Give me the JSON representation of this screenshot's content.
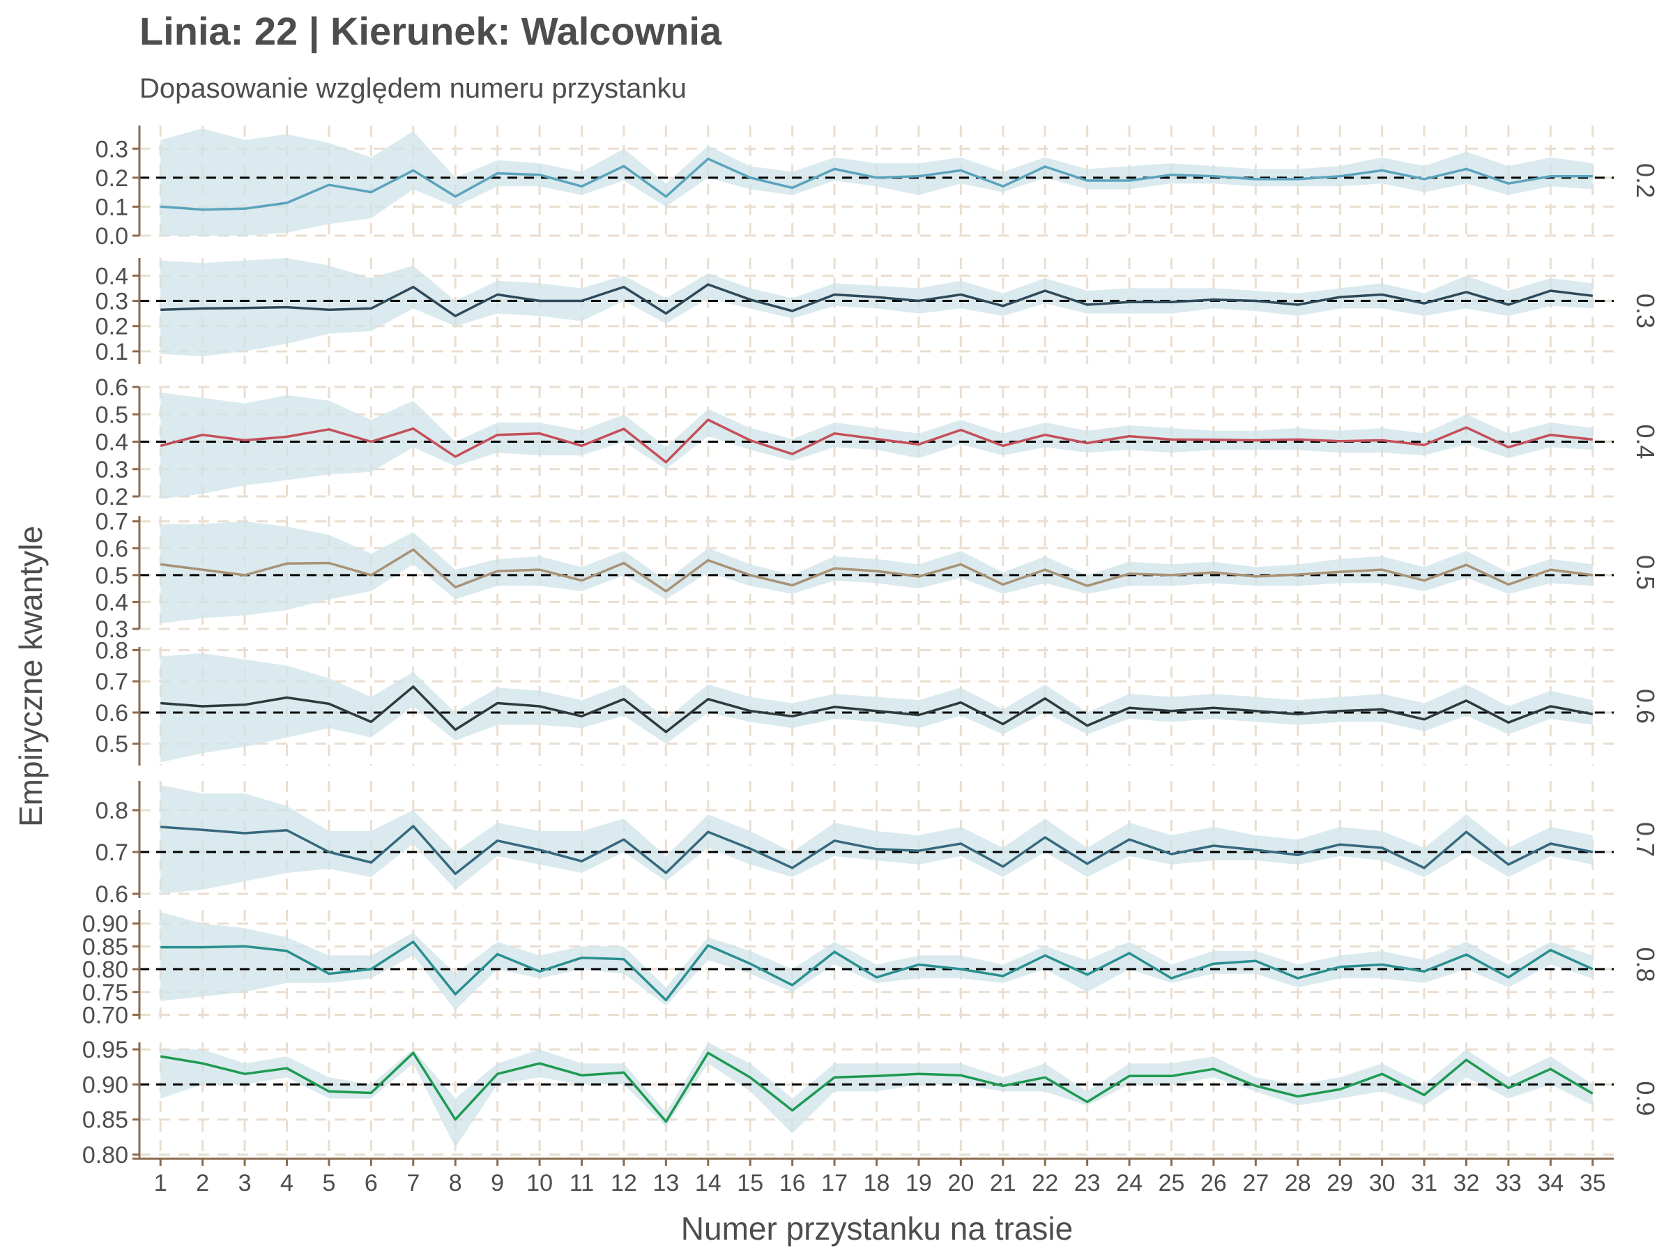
{
  "title": "Linia: 22 | Kierunek: Walcownia",
  "subtitle": "Dopasowanie względem numeru przystanku",
  "colors": {
    "band": "#cfe3e8",
    "grid": "#eaded0",
    "axis": "#8b6a4e",
    "reference": "#000000",
    "text": "#4d4d4d"
  },
  "chart_data": {
    "type": "line",
    "title": "Linia: 22 | Kierunek: Walcownia",
    "subtitle": "Dopasowanie względem numeru przystanku",
    "xlabel": "Numer przystanku na trasie",
    "ylabel": "Empiryczne kwantyle",
    "x": [
      1,
      2,
      3,
      4,
      5,
      6,
      7,
      8,
      9,
      10,
      11,
      12,
      13,
      14,
      15,
      16,
      17,
      18,
      19,
      20,
      21,
      22,
      23,
      24,
      25,
      26,
      27,
      28,
      29,
      30,
      31,
      32,
      33,
      34,
      35
    ],
    "xlim": [
      0.5,
      35.5
    ],
    "grid": true,
    "panels": [
      {
        "strip": "0.2",
        "reference": 0.2,
        "color": "#5ba3bd",
        "ylim": [
          0.0,
          0.38
        ],
        "ticks": [
          0.0,
          0.1,
          0.2,
          0.3
        ],
        "tick_labels": [
          "0.0",
          "0.1",
          "0.2",
          "0.3"
        ],
        "values": [
          0.1,
          0.09,
          0.093,
          0.113,
          0.175,
          0.15,
          0.225,
          0.135,
          0.215,
          0.21,
          0.17,
          0.24,
          0.135,
          0.265,
          0.2,
          0.165,
          0.23,
          0.2,
          0.205,
          0.225,
          0.17,
          0.238,
          0.19,
          0.19,
          0.21,
          0.205,
          0.195,
          0.195,
          0.205,
          0.225,
          0.195,
          0.23,
          0.18,
          0.205,
          0.205
        ],
        "lower": [
          0.0,
          0.0,
          0.0,
          0.01,
          0.04,
          0.06,
          0.16,
          0.1,
          0.17,
          0.17,
          0.14,
          0.19,
          0.1,
          0.2,
          0.16,
          0.14,
          0.19,
          0.17,
          0.14,
          0.18,
          0.15,
          0.2,
          0.16,
          0.16,
          0.18,
          0.18,
          0.17,
          0.17,
          0.17,
          0.18,
          0.15,
          0.18,
          0.14,
          0.17,
          0.16
        ],
        "upper": [
          0.33,
          0.37,
          0.33,
          0.35,
          0.32,
          0.27,
          0.36,
          0.2,
          0.26,
          0.25,
          0.22,
          0.3,
          0.18,
          0.31,
          0.24,
          0.22,
          0.27,
          0.25,
          0.25,
          0.27,
          0.22,
          0.27,
          0.23,
          0.24,
          0.25,
          0.24,
          0.23,
          0.23,
          0.24,
          0.27,
          0.24,
          0.29,
          0.24,
          0.27,
          0.25
        ]
      },
      {
        "strip": "0.3",
        "reference": 0.3,
        "color": "#2e4a5a",
        "ylim": [
          0.05,
          0.47
        ],
        "ticks": [
          0.1,
          0.2,
          0.3,
          0.4
        ],
        "tick_labels": [
          "0.1",
          "0.2",
          "0.3",
          "0.4"
        ],
        "values": [
          0.265,
          0.27,
          0.272,
          0.275,
          0.265,
          0.27,
          0.355,
          0.24,
          0.325,
          0.3,
          0.3,
          0.355,
          0.25,
          0.365,
          0.305,
          0.26,
          0.325,
          0.315,
          0.3,
          0.325,
          0.28,
          0.34,
          0.285,
          0.295,
          0.295,
          0.305,
          0.3,
          0.285,
          0.315,
          0.325,
          0.29,
          0.335,
          0.285,
          0.34,
          0.32
        ],
        "lower": [
          0.09,
          0.08,
          0.1,
          0.13,
          0.17,
          0.18,
          0.27,
          0.2,
          0.25,
          0.24,
          0.22,
          0.3,
          0.21,
          0.31,
          0.27,
          0.23,
          0.28,
          0.27,
          0.25,
          0.27,
          0.24,
          0.29,
          0.25,
          0.25,
          0.25,
          0.27,
          0.26,
          0.24,
          0.27,
          0.27,
          0.24,
          0.27,
          0.24,
          0.28,
          0.27
        ],
        "upper": [
          0.46,
          0.45,
          0.46,
          0.47,
          0.44,
          0.39,
          0.44,
          0.3,
          0.38,
          0.37,
          0.35,
          0.4,
          0.31,
          0.41,
          0.35,
          0.31,
          0.37,
          0.36,
          0.35,
          0.38,
          0.33,
          0.39,
          0.34,
          0.35,
          0.35,
          0.35,
          0.34,
          0.33,
          0.35,
          0.37,
          0.33,
          0.4,
          0.34,
          0.39,
          0.37
        ]
      },
      {
        "strip": "0.4",
        "reference": 0.4,
        "color": "#c4505a",
        "ylim": [
          0.2,
          0.6
        ],
        "ticks": [
          0.2,
          0.3,
          0.4,
          0.5,
          0.6
        ],
        "tick_labels": [
          "0.2",
          "0.3",
          "0.4",
          "0.5",
          "0.6"
        ],
        "values": [
          0.385,
          0.425,
          0.405,
          0.418,
          0.445,
          0.4,
          0.448,
          0.345,
          0.425,
          0.43,
          0.385,
          0.447,
          0.325,
          0.48,
          0.405,
          0.355,
          0.43,
          0.41,
          0.39,
          0.443,
          0.385,
          0.425,
          0.395,
          0.42,
          0.408,
          0.407,
          0.405,
          0.408,
          0.402,
          0.405,
          0.388,
          0.452,
          0.38,
          0.425,
          0.408
        ],
        "lower": [
          0.19,
          0.21,
          0.24,
          0.26,
          0.28,
          0.29,
          0.38,
          0.31,
          0.36,
          0.35,
          0.35,
          0.4,
          0.3,
          0.42,
          0.37,
          0.33,
          0.38,
          0.37,
          0.34,
          0.39,
          0.35,
          0.38,
          0.36,
          0.37,
          0.36,
          0.37,
          0.37,
          0.37,
          0.36,
          0.36,
          0.35,
          0.39,
          0.34,
          0.38,
          0.37
        ],
        "upper": [
          0.58,
          0.56,
          0.54,
          0.57,
          0.55,
          0.48,
          0.55,
          0.4,
          0.47,
          0.47,
          0.44,
          0.5,
          0.38,
          0.52,
          0.45,
          0.41,
          0.47,
          0.45,
          0.43,
          0.48,
          0.43,
          0.47,
          0.44,
          0.46,
          0.45,
          0.44,
          0.44,
          0.45,
          0.44,
          0.45,
          0.43,
          0.5,
          0.43,
          0.47,
          0.45
        ]
      },
      {
        "strip": "0.5",
        "reference": 0.5,
        "color": "#a89276",
        "ylim": [
          0.3,
          0.72
        ],
        "ticks": [
          0.3,
          0.4,
          0.5,
          0.6,
          0.7
        ],
        "tick_labels": [
          "0.3",
          "0.4",
          "0.5",
          "0.6",
          "0.7"
        ],
        "values": [
          0.54,
          0.52,
          0.5,
          0.543,
          0.545,
          0.5,
          0.595,
          0.455,
          0.515,
          0.52,
          0.48,
          0.545,
          0.44,
          0.555,
          0.5,
          0.462,
          0.525,
          0.515,
          0.495,
          0.54,
          0.465,
          0.52,
          0.46,
          0.505,
          0.5,
          0.51,
          0.495,
          0.502,
          0.512,
          0.52,
          0.48,
          0.538,
          0.465,
          0.52,
          0.5
        ],
        "lower": [
          0.32,
          0.34,
          0.35,
          0.37,
          0.41,
          0.44,
          0.54,
          0.41,
          0.46,
          0.46,
          0.44,
          0.5,
          0.41,
          0.51,
          0.46,
          0.43,
          0.48,
          0.47,
          0.45,
          0.49,
          0.43,
          0.47,
          0.43,
          0.46,
          0.46,
          0.47,
          0.46,
          0.46,
          0.47,
          0.47,
          0.44,
          0.49,
          0.43,
          0.47,
          0.46
        ],
        "upper": [
          0.69,
          0.69,
          0.7,
          0.68,
          0.65,
          0.58,
          0.66,
          0.52,
          0.56,
          0.57,
          0.53,
          0.59,
          0.48,
          0.6,
          0.54,
          0.5,
          0.57,
          0.56,
          0.54,
          0.59,
          0.51,
          0.57,
          0.5,
          0.55,
          0.54,
          0.55,
          0.53,
          0.54,
          0.56,
          0.57,
          0.53,
          0.59,
          0.51,
          0.56,
          0.54
        ]
      },
      {
        "strip": "0.6",
        "reference": 0.6,
        "color": "#2f3a3c",
        "ylim": [
          0.43,
          0.81
        ],
        "ticks": [
          0.5,
          0.6,
          0.7,
          0.8
        ],
        "tick_labels": [
          "0.5",
          "0.6",
          "0.7",
          "0.8"
        ],
        "values": [
          0.63,
          0.62,
          0.625,
          0.648,
          0.628,
          0.57,
          0.683,
          0.545,
          0.63,
          0.62,
          0.588,
          0.643,
          0.538,
          0.643,
          0.605,
          0.588,
          0.618,
          0.605,
          0.592,
          0.632,
          0.563,
          0.645,
          0.558,
          0.615,
          0.605,
          0.615,
          0.605,
          0.595,
          0.605,
          0.61,
          0.578,
          0.638,
          0.568,
          0.62,
          0.595
        ],
        "lower": [
          0.44,
          0.47,
          0.49,
          0.52,
          0.55,
          0.52,
          0.62,
          0.51,
          0.56,
          0.56,
          0.55,
          0.59,
          0.5,
          0.6,
          0.57,
          0.55,
          0.58,
          0.57,
          0.55,
          0.59,
          0.53,
          0.6,
          0.53,
          0.58,
          0.57,
          0.58,
          0.57,
          0.56,
          0.57,
          0.57,
          0.54,
          0.59,
          0.53,
          0.58,
          0.56
        ],
        "upper": [
          0.78,
          0.79,
          0.77,
          0.75,
          0.71,
          0.65,
          0.73,
          0.6,
          0.68,
          0.67,
          0.64,
          0.69,
          0.58,
          0.69,
          0.65,
          0.63,
          0.66,
          0.65,
          0.64,
          0.68,
          0.61,
          0.69,
          0.6,
          0.66,
          0.65,
          0.66,
          0.65,
          0.64,
          0.65,
          0.66,
          0.63,
          0.69,
          0.62,
          0.67,
          0.64
        ]
      },
      {
        "strip": "0.7",
        "reference": 0.7,
        "color": "#36697e",
        "ylim": [
          0.59,
          0.87
        ],
        "ticks": [
          0.6,
          0.7,
          0.8
        ],
        "tick_labels": [
          "0.6",
          "0.7",
          "0.8"
        ],
        "values": [
          0.76,
          0.753,
          0.745,
          0.752,
          0.7,
          0.675,
          0.762,
          0.648,
          0.727,
          0.705,
          0.678,
          0.73,
          0.65,
          0.748,
          0.708,
          0.662,
          0.727,
          0.707,
          0.703,
          0.72,
          0.665,
          0.735,
          0.672,
          0.73,
          0.695,
          0.715,
          0.705,
          0.693,
          0.718,
          0.71,
          0.662,
          0.748,
          0.67,
          0.72,
          0.7
        ],
        "lower": [
          0.6,
          0.61,
          0.63,
          0.65,
          0.66,
          0.64,
          0.72,
          0.61,
          0.69,
          0.67,
          0.65,
          0.7,
          0.63,
          0.71,
          0.67,
          0.64,
          0.69,
          0.68,
          0.67,
          0.69,
          0.64,
          0.7,
          0.64,
          0.69,
          0.67,
          0.68,
          0.68,
          0.67,
          0.69,
          0.68,
          0.64,
          0.7,
          0.64,
          0.69,
          0.67
        ],
        "upper": [
          0.86,
          0.84,
          0.84,
          0.81,
          0.75,
          0.75,
          0.8,
          0.7,
          0.77,
          0.75,
          0.75,
          0.78,
          0.69,
          0.79,
          0.75,
          0.7,
          0.77,
          0.75,
          0.74,
          0.76,
          0.71,
          0.78,
          0.71,
          0.77,
          0.74,
          0.76,
          0.74,
          0.73,
          0.76,
          0.75,
          0.71,
          0.79,
          0.71,
          0.76,
          0.74
        ]
      },
      {
        "strip": "0.8",
        "reference": 0.8,
        "color": "#2a8f8f",
        "ylim": [
          0.69,
          0.93
        ],
        "ticks": [
          0.7,
          0.75,
          0.8,
          0.85,
          0.9
        ],
        "tick_labels": [
          "0.70",
          "0.75",
          "0.80",
          "0.85",
          "0.90"
        ],
        "values": [
          0.848,
          0.848,
          0.85,
          0.84,
          0.79,
          0.8,
          0.86,
          0.745,
          0.833,
          0.795,
          0.825,
          0.822,
          0.732,
          0.852,
          0.812,
          0.765,
          0.838,
          0.782,
          0.81,
          0.8,
          0.785,
          0.83,
          0.788,
          0.835,
          0.78,
          0.812,
          0.818,
          0.78,
          0.805,
          0.81,
          0.795,
          0.832,
          0.782,
          0.842,
          0.8
        ],
        "lower": [
          0.73,
          0.74,
          0.75,
          0.77,
          0.77,
          0.78,
          0.83,
          0.71,
          0.8,
          0.78,
          0.8,
          0.79,
          0.72,
          0.82,
          0.79,
          0.75,
          0.81,
          0.77,
          0.78,
          0.78,
          0.77,
          0.8,
          0.75,
          0.8,
          0.77,
          0.79,
          0.79,
          0.76,
          0.78,
          0.78,
          0.77,
          0.8,
          0.76,
          0.81,
          0.78
        ],
        "upper": [
          0.925,
          0.9,
          0.89,
          0.87,
          0.83,
          0.83,
          0.88,
          0.79,
          0.86,
          0.83,
          0.85,
          0.85,
          0.76,
          0.87,
          0.84,
          0.8,
          0.86,
          0.81,
          0.83,
          0.83,
          0.81,
          0.85,
          0.82,
          0.86,
          0.81,
          0.84,
          0.84,
          0.81,
          0.83,
          0.84,
          0.82,
          0.86,
          0.81,
          0.86,
          0.83
        ]
      },
      {
        "strip": "0.9",
        "reference": 0.9,
        "color": "#1f9a52",
        "ylim": [
          0.8,
          0.96
        ],
        "ticks": [
          0.8,
          0.85,
          0.9,
          0.95
        ],
        "tick_labels": [
          "0.80",
          "0.85",
          "0.90",
          "0.95"
        ],
        "values": [
          0.94,
          0.93,
          0.915,
          0.923,
          0.89,
          0.888,
          0.945,
          0.85,
          0.915,
          0.93,
          0.913,
          0.917,
          0.847,
          0.945,
          0.91,
          0.863,
          0.91,
          0.912,
          0.915,
          0.913,
          0.898,
          0.91,
          0.875,
          0.912,
          0.912,
          0.922,
          0.898,
          0.883,
          0.893,
          0.915,
          0.885,
          0.935,
          0.895,
          0.922,
          0.887
        ],
        "lower": [
          0.88,
          0.9,
          0.9,
          0.91,
          0.88,
          0.88,
          0.93,
          0.81,
          0.9,
          0.91,
          0.9,
          0.9,
          0.84,
          0.93,
          0.89,
          0.83,
          0.89,
          0.89,
          0.9,
          0.9,
          0.89,
          0.89,
          0.87,
          0.9,
          0.9,
          0.91,
          0.89,
          0.87,
          0.88,
          0.89,
          0.87,
          0.91,
          0.88,
          0.9,
          0.87
        ],
        "upper": [
          0.95,
          0.95,
          0.93,
          0.94,
          0.91,
          0.9,
          0.95,
          0.88,
          0.93,
          0.95,
          0.93,
          0.93,
          0.86,
          0.96,
          0.93,
          0.88,
          0.93,
          0.93,
          0.93,
          0.93,
          0.91,
          0.93,
          0.89,
          0.93,
          0.93,
          0.94,
          0.91,
          0.9,
          0.91,
          0.93,
          0.9,
          0.95,
          0.91,
          0.94,
          0.9
        ]
      }
    ]
  }
}
